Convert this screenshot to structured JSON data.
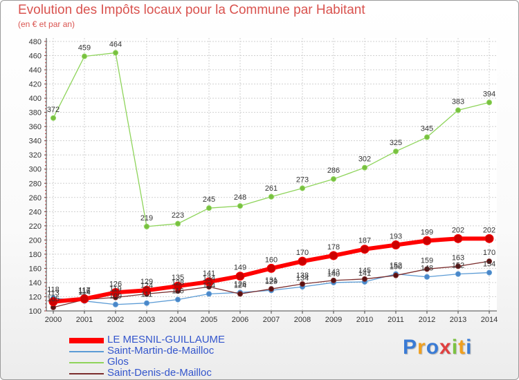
{
  "title": "Evolution des Impôts locaux pour la Commune par Habitant",
  "subtitle": "(en € et par an)",
  "logo": {
    "text": "Proxiti",
    "colors": [
      "#3a7bd5",
      "#f0a020",
      "#3a7bd5",
      "#e04040",
      "#7cc243",
      "#f0a020",
      "#3a7bd5"
    ]
  },
  "chart_data": {
    "type": "line",
    "x": [
      "2000",
      "2001",
      "2002",
      "2003",
      "2004",
      "2005",
      "2006",
      "2007",
      "2008",
      "2009",
      "2010",
      "2011",
      "2012",
      "2013",
      "2014"
    ],
    "ylim": [
      100,
      480
    ],
    "yticks": [
      100,
      120,
      140,
      160,
      180,
      200,
      220,
      240,
      260,
      280,
      300,
      320,
      340,
      360,
      380,
      400,
      420,
      440,
      460,
      480
    ],
    "grid": true,
    "legend_position": "bottom-left",
    "series": [
      {
        "name": "LE MESNIL-GUILLAUME",
        "color": "#ff0000",
        "values": [
          113,
          117,
          126,
          129,
          135,
          141,
          149,
          160,
          170,
          178,
          187,
          193,
          199,
          202,
          202
        ],
        "labels": true
      },
      {
        "name": "Saint-Martin-de-Mailloc",
        "color": "#5b9bd5",
        "values": [
          118,
          114,
          109,
          111,
          116,
          124,
          126,
          129,
          134,
          140,
          141,
          152,
          148,
          152,
          154
        ],
        "labels": true
      },
      {
        "name": "Glos",
        "color": "#8ed45a",
        "values": [
          372,
          459,
          464,
          219,
          223,
          245,
          248,
          261,
          273,
          286,
          302,
          325,
          345,
          383,
          394
        ],
        "labels": true
      },
      {
        "name": "Saint-Denis-de-Mailloc",
        "color": "#7b2d2d",
        "values": [
          105,
          116,
          119,
          124,
          128,
          134,
          124,
          131,
          138,
          143,
          145,
          150,
          159,
          163,
          170
        ],
        "labels": true
      }
    ]
  }
}
